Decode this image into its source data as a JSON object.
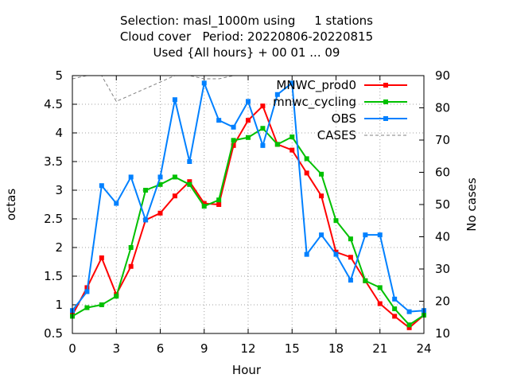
{
  "title_lines": [
    "Selection: masl_1000m using     1 stations",
    "Cloud cover   Period: 20220806-20220815",
    "Used {All hours} + 00 01 ... 09"
  ],
  "chart_data": {
    "type": "line",
    "xlabel": "Hour",
    "ylabel": "octas",
    "y2label": "No cases",
    "xlim": [
      0,
      24
    ],
    "ylim": [
      0.5,
      5
    ],
    "y2lim": [
      10,
      90
    ],
    "xticks": [
      0,
      3,
      6,
      9,
      12,
      15,
      18,
      21,
      24
    ],
    "yticks": [
      0.5,
      1,
      1.5,
      2,
      2.5,
      3,
      3.5,
      4,
      4.5,
      5
    ],
    "y2ticks": [
      10,
      20,
      30,
      40,
      50,
      60,
      70,
      80,
      90
    ],
    "grid": true,
    "legend_position": "top-right",
    "x": [
      0,
      1,
      2,
      3,
      4,
      5,
      6,
      7,
      8,
      9,
      10,
      11,
      12,
      13,
      14,
      15,
      16,
      17,
      18,
      19,
      20,
      21,
      22,
      23,
      24
    ],
    "series": [
      {
        "name": "MNWC_prod0",
        "color": "#ff0000",
        "axis": "y1",
        "values": [
          0.82,
          1.3,
          1.82,
          1.18,
          1.67,
          2.48,
          2.6,
          2.9,
          3.15,
          2.77,
          2.75,
          3.78,
          4.22,
          4.47,
          3.8,
          3.7,
          3.3,
          2.9,
          1.92,
          1.83,
          1.42,
          1.02,
          0.8,
          0.6,
          0.82
        ]
      },
      {
        "name": "mnwc_cycling",
        "color": "#00c000",
        "axis": "y1",
        "values": [
          0.8,
          0.95,
          1.0,
          1.15,
          2.0,
          3.0,
          3.1,
          3.23,
          3.1,
          2.72,
          2.83,
          3.87,
          3.92,
          4.08,
          3.8,
          3.93,
          3.55,
          3.28,
          2.47,
          2.15,
          1.42,
          1.3,
          0.93,
          0.65,
          0.82
        ]
      },
      {
        "name": "OBS",
        "color": "#0080ff",
        "axis": "y1",
        "values": [
          0.9,
          1.23,
          3.08,
          2.77,
          3.23,
          2.48,
          3.23,
          4.58,
          3.5,
          4.87,
          4.22,
          4.1,
          4.55,
          3.78,
          4.67,
          4.87,
          1.88,
          2.22,
          1.88,
          1.43,
          2.22,
          2.22,
          1.1,
          0.88,
          0.9
        ]
      },
      {
        "name": "CASES",
        "color": "#808080",
        "axis": "y2",
        "dashed": true,
        "values": [
          89,
          90,
          90,
          82,
          84,
          86,
          88,
          90,
          90,
          89,
          89,
          90,
          90,
          90,
          90,
          90,
          90,
          90,
          90,
          90,
          90,
          90,
          90,
          90,
          90
        ]
      }
    ]
  }
}
